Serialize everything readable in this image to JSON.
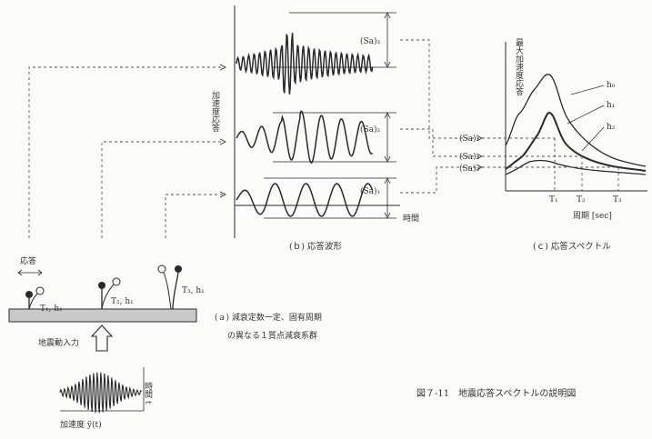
{
  "b_panel": {
    "ylabel": "加速度応答",
    "xlabel": "時間",
    "amp_labels": [
      "(Sa)₃",
      "(Sa)₂",
      "(Sa)₁"
    ],
    "caption": "(ｂ) 応答波形"
  },
  "c_panel": {
    "ylabel": "最大加速度応答",
    "xlabel": "周期 [sec]",
    "curve_labels": [
      "h₀",
      "h₁",
      "h₂"
    ],
    "xticks": [
      "T₁",
      "T₂",
      "T₃"
    ],
    "left_labels": [
      "(Sa)₁",
      "(Sa)₂",
      "(Sa)₃"
    ],
    "caption": "(ｃ) 応答スペクトル"
  },
  "a_panel": {
    "response_label": "応答",
    "osc_labels": [
      "T₁, h₁",
      "T₂, h₁",
      "T₃, h₁"
    ],
    "caption_line1": "(ａ) 減衰定数一定、固有周期",
    "caption_line2": "の異なる１質点減衰系群",
    "input_label": "地震動入力",
    "time_label": "時間 t",
    "accel_label": "加速度 ÿ(t)"
  },
  "figure_caption": "図７-11　地震応答スペクトルの説明図"
}
